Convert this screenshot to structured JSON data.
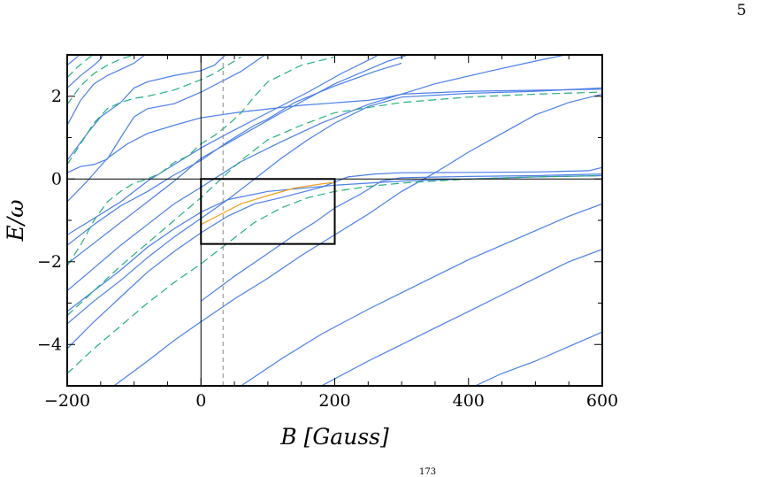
{
  "page": {
    "page_number": "5",
    "stray_superscript": "173"
  },
  "chart_data": {
    "type": "line",
    "xlabel": "B [Gauss]",
    "ylabel": "E/ω",
    "xlim": [
      -200,
      600
    ],
    "ylim": [
      -5,
      3
    ],
    "xticks": [
      -200,
      0,
      200,
      400,
      600
    ],
    "yticks": [
      -4,
      -2,
      0,
      2
    ],
    "xtick_labels": [
      "−200",
      "0",
      "200",
      "400",
      "600"
    ],
    "ytick_labels": [
      "−4",
      "−2",
      "0",
      "2"
    ],
    "grid": false,
    "legend": "none",
    "colors": {
      "blue": "#4c7fe8",
      "green": "#27b07b",
      "orange": "#f0a020",
      "axis": "#000000",
      "reference_dashed": "#888888"
    },
    "reference_lines": {
      "horizontal_y": 0,
      "vertical_x": 0,
      "dashed_vertical_x": 33
    },
    "highlight_box": {
      "x": [
        0,
        200
      ],
      "y": [
        -1.57,
        0
      ]
    },
    "series": [
      {
        "style": "blue",
        "points": [
          [
            -200,
            -0.55
          ],
          [
            -170,
            -0.05
          ],
          [
            -140,
            0.5
          ],
          [
            -110,
            0.85
          ],
          [
            -80,
            1.1
          ],
          [
            -40,
            1.3
          ],
          [
            0,
            1.48
          ],
          [
            60,
            1.62
          ],
          [
            150,
            1.78
          ],
          [
            250,
            1.9
          ],
          [
            275,
            1.96
          ],
          [
            300,
            2.05
          ],
          [
            400,
            2.12
          ],
          [
            600,
            2.17
          ]
        ]
      },
      {
        "style": "blue",
        "points": [
          [
            -200,
            0.15
          ],
          [
            -180,
            0.3
          ],
          [
            -160,
            0.35
          ],
          [
            -140,
            0.48
          ],
          [
            -120,
            1.0
          ],
          [
            -100,
            1.5
          ],
          [
            -80,
            1.7
          ],
          [
            -40,
            1.82
          ],
          [
            0,
            2.1
          ],
          [
            30,
            2.35
          ],
          [
            60,
            2.6
          ],
          [
            100,
            3.05
          ]
        ]
      },
      {
        "style": "blue",
        "points": [
          [
            -200,
            0.45
          ],
          [
            -170,
            1.1
          ],
          [
            -150,
            1.5
          ],
          [
            -120,
            1.85
          ],
          [
            -100,
            2.2
          ],
          [
            -80,
            2.35
          ],
          [
            -40,
            2.5
          ],
          [
            0,
            2.62
          ],
          [
            20,
            2.75
          ],
          [
            40,
            3.05
          ]
        ]
      },
      {
        "style": "blue",
        "points": [
          [
            -200,
            1.3
          ],
          [
            -180,
            1.9
          ],
          [
            -160,
            2.3
          ],
          [
            -140,
            2.5
          ],
          [
            -120,
            2.65
          ],
          [
            -100,
            2.8
          ],
          [
            -80,
            3.05
          ]
        ]
      },
      {
        "style": "blue",
        "points": [
          [
            -200,
            2.2
          ],
          [
            -180,
            2.5
          ],
          [
            -160,
            2.75
          ],
          [
            -150,
            2.9
          ],
          [
            -145,
            3.05
          ]
        ]
      },
      {
        "style": "blue",
        "points": [
          [
            -200,
            2.75
          ],
          [
            -185,
            2.95
          ],
          [
            -178,
            3.05
          ]
        ]
      },
      {
        "style": "blue",
        "points": [
          [
            -200,
            -2.05
          ],
          [
            -160,
            -1.55
          ],
          [
            -120,
            -1.05
          ],
          [
            -80,
            -0.55
          ],
          [
            -40,
            -0.05
          ],
          [
            0,
            0.5
          ],
          [
            60,
            1.05
          ],
          [
            120,
            1.6
          ],
          [
            200,
            2.3
          ],
          [
            280,
            2.85
          ],
          [
            320,
            3.05
          ]
        ]
      },
      {
        "style": "blue",
        "points": [
          [
            -200,
            -2.7
          ],
          [
            -160,
            -2.15
          ],
          [
            -120,
            -1.6
          ],
          [
            -80,
            -1.1
          ],
          [
            -40,
            -0.6
          ],
          [
            0,
            -0.2
          ],
          [
            60,
            0.42
          ],
          [
            120,
            0.9
          ],
          [
            180,
            1.35
          ],
          [
            250,
            1.8
          ],
          [
            350,
            2.3
          ],
          [
            430,
            2.6
          ],
          [
            500,
            2.85
          ],
          [
            560,
            3.05
          ]
        ]
      },
      {
        "style": "blue",
        "points": [
          [
            -200,
            -1.35
          ],
          [
            -160,
            -0.95
          ],
          [
            -120,
            -0.55
          ],
          [
            -80,
            -0.05
          ],
          [
            -40,
            0.35
          ],
          [
            0,
            0.75
          ],
          [
            40,
            1.1
          ],
          [
            100,
            1.6
          ],
          [
            160,
            2.1
          ],
          [
            210,
            2.55
          ],
          [
            260,
            2.95
          ],
          [
            270,
            3.05
          ]
        ]
      },
      {
        "style": "blue",
        "points": [
          [
            -200,
            -1.6
          ],
          [
            -160,
            -1.1
          ],
          [
            -120,
            -0.65
          ],
          [
            -80,
            -0.3
          ],
          [
            -40,
            0.1
          ],
          [
            0,
            0.45
          ],
          [
            40,
            0.9
          ],
          [
            80,
            1.3
          ],
          [
            100,
            1.45
          ],
          [
            140,
            1.85
          ],
          [
            200,
            2.25
          ],
          [
            260,
            2.6
          ],
          [
            300,
            2.8
          ]
        ]
      },
      {
        "style": "blue",
        "points": [
          [
            -200,
            -3.2
          ],
          [
            -160,
            -2.7
          ],
          [
            -120,
            -2.2
          ],
          [
            -80,
            -1.65
          ],
          [
            -40,
            -1.2
          ],
          [
            0,
            -0.8
          ],
          [
            40,
            -0.5
          ],
          [
            100,
            -0.3
          ],
          [
            200,
            -0.15
          ],
          [
            300,
            -0.05
          ],
          [
            500,
            0.05
          ],
          [
            600,
            0.08
          ]
        ]
      },
      {
        "style": "blue",
        "points": [
          [
            -200,
            -4.1
          ],
          [
            -160,
            -3.45
          ],
          [
            -120,
            -2.85
          ],
          [
            -80,
            -2.25
          ],
          [
            -40,
            -1.75
          ],
          [
            0,
            -1.3
          ],
          [
            40,
            -0.9
          ],
          [
            80,
            -0.6
          ],
          [
            120,
            -0.45
          ],
          [
            180,
            -0.2
          ],
          [
            220,
            0.05
          ],
          [
            260,
            0.12
          ],
          [
            300,
            0.15
          ],
          [
            400,
            0.16
          ],
          [
            500,
            0.17
          ],
          [
            580,
            0.2
          ],
          [
            600,
            0.28
          ]
        ]
      },
      {
        "style": "blue",
        "points": [
          [
            -200,
            -3.5
          ],
          [
            -160,
            -2.95
          ],
          [
            -120,
            -2.45
          ],
          [
            -80,
            -1.9
          ],
          [
            -40,
            -1.4
          ],
          [
            0,
            -0.95
          ],
          [
            40,
            -0.5
          ],
          [
            80,
            0.0
          ],
          [
            120,
            0.5
          ],
          [
            160,
            0.95
          ],
          [
            200,
            1.35
          ],
          [
            250,
            1.75
          ],
          [
            300,
            1.98
          ],
          [
            400,
            2.07
          ],
          [
            500,
            2.12
          ],
          [
            600,
            2.2
          ]
        ]
      },
      {
        "style": "blue",
        "points": [
          [
            -130,
            -5.0
          ],
          [
            -80,
            -4.4
          ],
          [
            -40,
            -3.9
          ],
          [
            0,
            -3.45
          ],
          [
            50,
            -2.9
          ],
          [
            100,
            -2.4
          ],
          [
            150,
            -1.85
          ],
          [
            200,
            -1.35
          ],
          [
            250,
            -0.85
          ],
          [
            300,
            -0.3
          ],
          [
            350,
            0.15
          ],
          [
            400,
            0.65
          ],
          [
            450,
            1.1
          ],
          [
            500,
            1.55
          ],
          [
            550,
            1.85
          ],
          [
            600,
            2.05
          ]
        ]
      },
      {
        "style": "blue",
        "points": [
          [
            0,
            -2.95
          ],
          [
            50,
            -2.35
          ],
          [
            100,
            -1.8
          ],
          [
            140,
            -1.35
          ],
          [
            170,
            -1.05
          ],
          [
            200,
            -0.7
          ],
          [
            240,
            -0.35
          ],
          [
            270,
            -0.05
          ],
          [
            300,
            0.03
          ],
          [
            400,
            0.06
          ],
          [
            500,
            0.08
          ],
          [
            600,
            0.12
          ]
        ]
      },
      {
        "style": "blue",
        "points": [
          [
            60,
            -5.0
          ],
          [
            120,
            -4.35
          ],
          [
            180,
            -3.75
          ],
          [
            250,
            -3.15
          ],
          [
            300,
            -2.75
          ],
          [
            350,
            -2.35
          ],
          [
            400,
            -1.95
          ],
          [
            450,
            -1.6
          ],
          [
            500,
            -1.25
          ],
          [
            550,
            -0.9
          ],
          [
            600,
            -0.6
          ]
        ]
      },
      {
        "style": "blue",
        "points": [
          [
            180,
            -5.0
          ],
          [
            250,
            -4.4
          ],
          [
            300,
            -4.0
          ],
          [
            350,
            -3.6
          ],
          [
            400,
            -3.2
          ],
          [
            450,
            -2.8
          ],
          [
            500,
            -2.4
          ],
          [
            550,
            -2.0
          ],
          [
            600,
            -1.7
          ]
        ]
      },
      {
        "style": "blue",
        "points": [
          [
            410,
            -5.0
          ],
          [
            450,
            -4.7
          ],
          [
            500,
            -4.4
          ],
          [
            550,
            -4.05
          ],
          [
            600,
            -3.7
          ]
        ]
      },
      {
        "style": "green",
        "points": [
          [
            -200,
            -2.1
          ],
          [
            -180,
            -1.6
          ],
          [
            -160,
            -1.0
          ],
          [
            -140,
            -0.55
          ],
          [
            -120,
            -0.3
          ],
          [
            -100,
            -0.1
          ],
          [
            -80,
            0.0
          ],
          [
            -60,
            0.15
          ],
          [
            -40,
            0.4
          ],
          [
            -20,
            0.55
          ],
          [
            0,
            0.85
          ],
          [
            20,
            1.05
          ],
          [
            40,
            1.3
          ],
          [
            60,
            1.6
          ],
          [
            80,
            2.0
          ],
          [
            100,
            2.35
          ],
          [
            150,
            2.75
          ],
          [
            200,
            2.95
          ]
        ]
      },
      {
        "style": "green",
        "points": [
          [
            -200,
            -3.3
          ],
          [
            -160,
            -2.7
          ],
          [
            -120,
            -2.1
          ],
          [
            -80,
            -1.55
          ],
          [
            -40,
            -1.0
          ],
          [
            0,
            -0.45
          ],
          [
            20,
            -0.15
          ],
          [
            40,
            0.15
          ],
          [
            60,
            0.45
          ],
          [
            80,
            0.7
          ],
          [
            100,
            0.95
          ],
          [
            150,
            1.3
          ],
          [
            200,
            1.6
          ],
          [
            300,
            1.85
          ],
          [
            400,
            1.98
          ],
          [
            500,
            2.05
          ],
          [
            600,
            2.1
          ]
        ]
      },
      {
        "style": "green",
        "points": [
          [
            -200,
            -4.7
          ],
          [
            -160,
            -4.1
          ],
          [
            -120,
            -3.55
          ],
          [
            -80,
            -3.0
          ],
          [
            -40,
            -2.5
          ],
          [
            0,
            -2.05
          ],
          [
            40,
            -1.55
          ],
          [
            80,
            -1.05
          ],
          [
            120,
            -0.7
          ],
          [
            160,
            -0.45
          ],
          [
            200,
            -0.3
          ],
          [
            250,
            -0.18
          ],
          [
            300,
            -0.1
          ],
          [
            400,
            0.0
          ],
          [
            500,
            0.05
          ],
          [
            600,
            0.08
          ]
        ]
      },
      {
        "style": "green",
        "points": [
          [
            -200,
            0.35
          ],
          [
            -180,
            0.85
          ],
          [
            -160,
            1.35
          ],
          [
            -140,
            1.7
          ],
          [
            -120,
            1.85
          ],
          [
            -100,
            1.95
          ],
          [
            -80,
            2.0
          ],
          [
            -40,
            2.15
          ],
          [
            0,
            2.4
          ],
          [
            20,
            2.55
          ],
          [
            40,
            2.75
          ],
          [
            60,
            2.95
          ]
        ]
      },
      {
        "style": "green",
        "points": [
          [
            -200,
            1.8
          ],
          [
            -180,
            2.25
          ],
          [
            -160,
            2.55
          ],
          [
            -140,
            2.75
          ],
          [
            -120,
            2.9
          ],
          [
            -100,
            3.0
          ]
        ]
      },
      {
        "style": "green",
        "points": [
          [
            -200,
            2.45
          ],
          [
            -185,
            2.7
          ],
          [
            -170,
            2.9
          ],
          [
            -160,
            3.02
          ]
        ]
      },
      {
        "style": "orange",
        "points": [
          [
            0,
            -1.1
          ],
          [
            30,
            -0.85
          ],
          [
            60,
            -0.6
          ],
          [
            100,
            -0.4
          ],
          [
            140,
            -0.22
          ],
          [
            180,
            -0.12
          ],
          [
            200,
            -0.08
          ]
        ]
      }
    ]
  }
}
